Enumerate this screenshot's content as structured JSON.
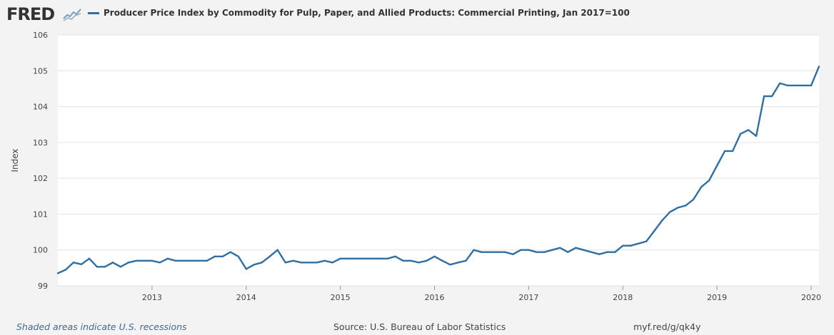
{
  "header": {
    "logo_text": "FRED",
    "logo_icon": "fred-sparkline-icon",
    "legend_title": "Producer Price Index by Commodity for Pulp, Paper, and Allied Products: Commercial Printing, Jan 2017=100"
  },
  "footer": {
    "recession_note": "Shaded areas indicate U.S. recessions",
    "source": "Source: U.S. Bureau of Labor Statistics",
    "short_url": "myf.red/g/qk4y"
  },
  "colors": {
    "series": "#2f6fa3",
    "plot_bg": "#ffffff",
    "page_bg": "#f3f3f3",
    "grid": "#e3e3e3"
  },
  "chart_data": {
    "type": "line",
    "title": "Producer Price Index by Commodity for Pulp, Paper, and Allied Products: Commercial Printing, Jan 2017=100",
    "xlabel": "",
    "ylabel": "Index",
    "ylim": [
      99,
      106
    ],
    "yticks": [
      99,
      100,
      101,
      102,
      103,
      104,
      105,
      106
    ],
    "xlim": [
      "2012-01",
      "2020-02"
    ],
    "xticks": [
      "2013",
      "2014",
      "2015",
      "2016",
      "2017",
      "2018",
      "2019",
      "2020"
    ],
    "grid": true,
    "series": [
      {
        "name": "Producer Price Index by Commodity for Pulp, Paper, and Allied Products: Commercial Printing",
        "x": [
          "2012-01",
          "2012-02",
          "2012-03",
          "2012-04",
          "2012-05",
          "2012-06",
          "2012-07",
          "2012-08",
          "2012-09",
          "2012-10",
          "2012-11",
          "2012-12",
          "2013-01",
          "2013-02",
          "2013-03",
          "2013-04",
          "2013-05",
          "2013-06",
          "2013-07",
          "2013-08",
          "2013-09",
          "2013-10",
          "2013-11",
          "2013-12",
          "2014-01",
          "2014-02",
          "2014-03",
          "2014-04",
          "2014-05",
          "2014-06",
          "2014-07",
          "2014-08",
          "2014-09",
          "2014-10",
          "2014-11",
          "2014-12",
          "2015-01",
          "2015-02",
          "2015-03",
          "2015-04",
          "2015-05",
          "2015-06",
          "2015-07",
          "2015-08",
          "2015-09",
          "2015-10",
          "2015-11",
          "2015-12",
          "2016-01",
          "2016-02",
          "2016-03",
          "2016-04",
          "2016-05",
          "2016-06",
          "2016-07",
          "2016-08",
          "2016-09",
          "2016-10",
          "2016-11",
          "2016-12",
          "2017-01",
          "2017-02",
          "2017-03",
          "2017-04",
          "2017-05",
          "2017-06",
          "2017-07",
          "2017-08",
          "2017-09",
          "2017-10",
          "2017-11",
          "2017-12",
          "2018-01",
          "2018-02",
          "2018-03",
          "2018-04",
          "2018-05",
          "2018-06",
          "2018-07",
          "2018-08",
          "2018-09",
          "2018-10",
          "2018-11",
          "2018-12",
          "2019-01",
          "2019-02",
          "2019-03",
          "2019-04",
          "2019-05",
          "2019-06",
          "2019-07",
          "2019-08",
          "2019-09",
          "2019-10",
          "2019-11",
          "2019-12",
          "2020-01",
          "2020-02"
        ],
        "values": [
          99.35,
          99.45,
          99.65,
          99.6,
          99.76,
          99.53,
          99.53,
          99.65,
          99.53,
          99.65,
          99.7,
          99.7,
          99.7,
          99.65,
          99.76,
          99.7,
          99.7,
          99.7,
          99.7,
          99.7,
          99.82,
          99.82,
          99.94,
          99.82,
          99.47,
          99.59,
          99.65,
          99.82,
          100.0,
          99.65,
          99.7,
          99.65,
          99.65,
          99.65,
          99.7,
          99.65,
          99.76,
          99.76,
          99.76,
          99.76,
          99.76,
          99.76,
          99.76,
          99.82,
          99.7,
          99.7,
          99.65,
          99.7,
          99.82,
          99.7,
          99.59,
          99.65,
          99.7,
          100.0,
          99.94,
          99.94,
          99.94,
          99.94,
          99.88,
          100.0,
          100.0,
          99.94,
          99.94,
          100.0,
          100.06,
          99.94,
          100.06,
          100.0,
          99.94,
          99.88,
          99.94,
          99.94,
          100.12,
          100.12,
          100.18,
          100.24,
          100.53,
          100.82,
          101.06,
          101.18,
          101.24,
          101.41,
          101.76,
          101.94,
          102.35,
          102.76,
          102.76,
          103.24,
          103.35,
          103.18,
          104.29,
          104.29,
          104.65,
          104.59,
          104.59,
          104.59,
          104.59,
          105.12
        ]
      }
    ]
  }
}
